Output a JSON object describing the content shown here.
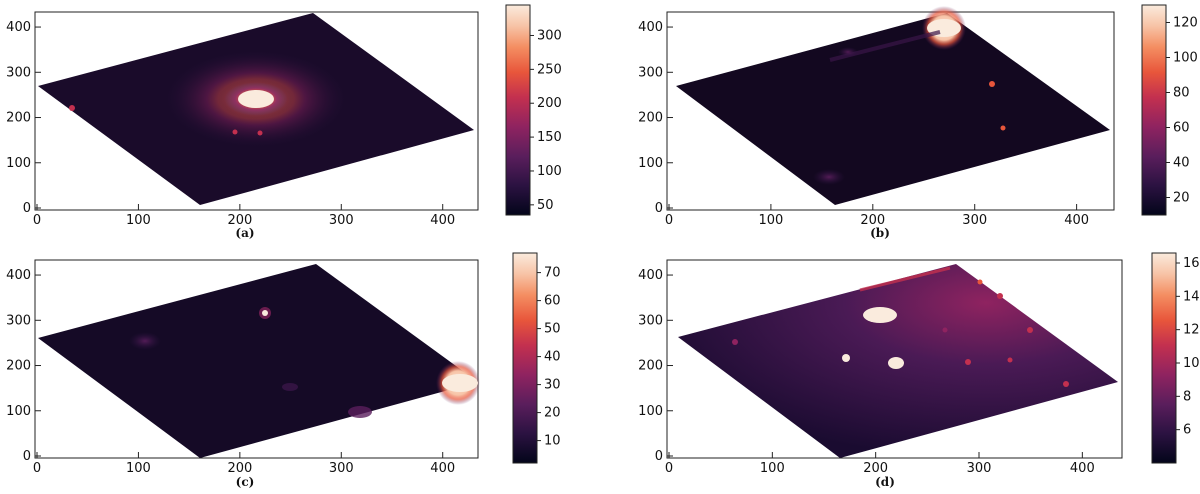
{
  "panels": [
    {
      "id": "a",
      "caption": "(a)",
      "x_ticks": [
        "0",
        "100",
        "200",
        "300",
        "400"
      ],
      "y_ticks": [
        "0",
        "100",
        "200",
        "300",
        "400"
      ],
      "colorbar_ticks": [
        "50",
        "100",
        "150",
        "200",
        "250",
        "300"
      ],
      "colorbar_range": [
        35,
        345
      ]
    },
    {
      "id": "b",
      "caption": "(b)",
      "x_ticks": [
        "0",
        "100",
        "200",
        "300",
        "400"
      ],
      "y_ticks": [
        "0",
        "100",
        "200",
        "300",
        "400"
      ],
      "colorbar_ticks": [
        "20",
        "40",
        "60",
        "80",
        "100",
        "120"
      ],
      "colorbar_range": [
        10,
        130
      ]
    },
    {
      "id": "c",
      "caption": "(c)",
      "x_ticks": [
        "0",
        "100",
        "200",
        "300",
        "400"
      ],
      "y_ticks": [
        "0",
        "100",
        "200",
        "300",
        "400"
      ],
      "colorbar_ticks": [
        "10",
        "20",
        "30",
        "40",
        "50",
        "60",
        "70"
      ],
      "colorbar_range": [
        2,
        77
      ]
    },
    {
      "id": "d",
      "caption": "(d)",
      "x_ticks": [
        "0",
        "100",
        "200",
        "300",
        "400"
      ],
      "y_ticks": [
        "0",
        "100",
        "200",
        "300",
        "400"
      ],
      "colorbar_ticks": [
        "6",
        "8",
        "10",
        "12",
        "14",
        "16"
      ],
      "colorbar_range": [
        4,
        16.6
      ]
    }
  ],
  "colormap": [
    "#03051a",
    "#2b1241",
    "#5a1e5c",
    "#8f2360",
    "#c3304f",
    "#e8563b",
    "#f48e62",
    "#f7c3a6",
    "#faebdd"
  ]
}
